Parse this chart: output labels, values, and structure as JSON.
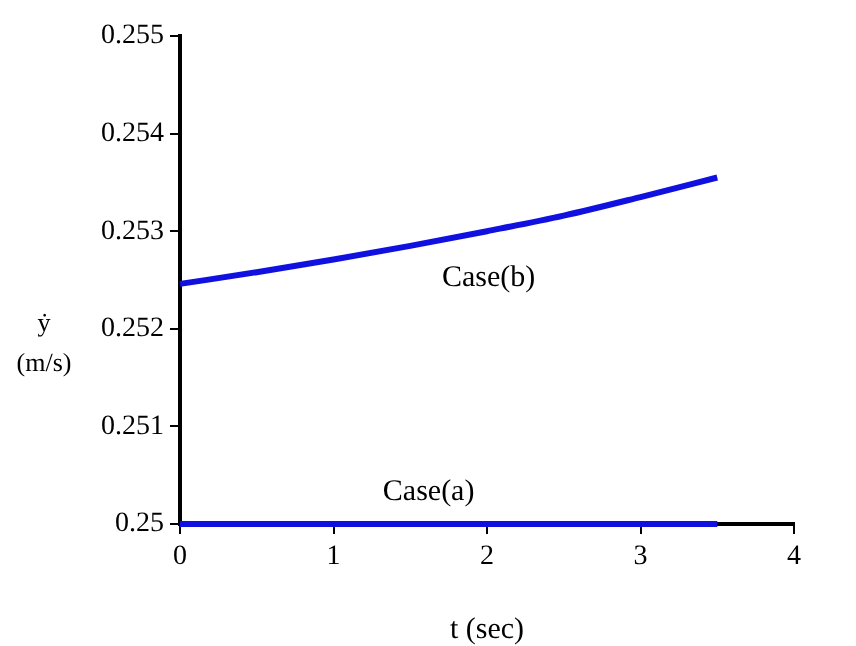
{
  "chart_data": {
    "type": "line",
    "xlabel": "t (sec)",
    "ylabel": "ẏ (m/s)",
    "xlim": [
      0,
      4
    ],
    "xticks": [
      0,
      1,
      2,
      3,
      4
    ],
    "ylim": [
      0.25,
      0.255
    ],
    "yticks": [
      0.25,
      0.251,
      0.252,
      0.253,
      0.254,
      0.255
    ],
    "grid": false,
    "legend": false,
    "marker": "none",
    "line_style": "solid",
    "series": [
      {
        "name": "Case(b)",
        "color": "#1010e0",
        "x": [
          0,
          0.5,
          1,
          1.5,
          2,
          2.5,
          3,
          3.5
        ],
        "values": [
          0.25246,
          0.25258,
          0.25271,
          0.25285,
          0.253,
          0.25316,
          0.25335,
          0.25355
        ]
      },
      {
        "name": "Case(a)",
        "color": "#1010e0",
        "x": [
          0,
          3.5
        ],
        "values": [
          0.25,
          0.25
        ]
      }
    ]
  }
}
